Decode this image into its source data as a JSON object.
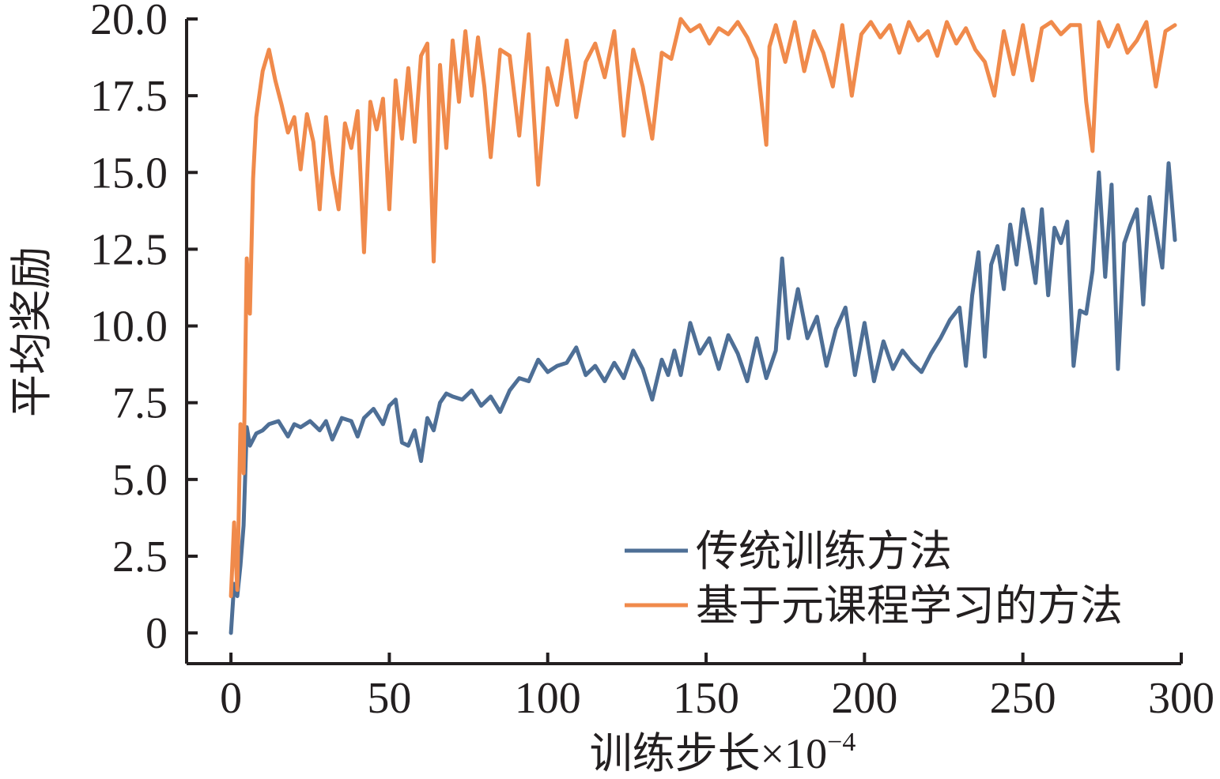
{
  "chart_data": {
    "type": "line",
    "xlabel": "训练步长×10",
    "xlabel_exp": "−4",
    "ylabel": "平均奖励",
    "xlim": [
      -14,
      300
    ],
    "ylim": [
      -1,
      20
    ],
    "xticks": [
      "0",
      "50",
      "100",
      "150",
      "200",
      "250",
      "300"
    ],
    "yticks": [
      "0",
      "2.5",
      "5.0",
      "7.5",
      "10.0",
      "12.5",
      "15.0",
      "17.5",
      "20.0"
    ],
    "legend_position": "bottom-right",
    "series": [
      {
        "name": "传统训练方法",
        "color": "#4e6f96",
        "x": [
          0,
          1,
          2,
          3,
          4,
          5,
          6,
          8,
          10,
          12,
          15,
          18,
          20,
          22,
          25,
          28,
          30,
          32,
          35,
          38,
          40,
          42,
          45,
          48,
          50,
          52,
          54,
          56,
          58,
          60,
          62,
          64,
          66,
          68,
          70,
          73,
          76,
          79,
          82,
          85,
          88,
          91,
          94,
          97,
          100,
          103,
          106,
          109,
          112,
          115,
          118,
          121,
          124,
          127,
          130,
          133,
          136,
          138,
          140,
          142,
          145,
          148,
          151,
          154,
          157,
          160,
          163,
          166,
          169,
          172,
          174,
          176,
          179,
          182,
          185,
          188,
          191,
          194,
          197,
          200,
          203,
          206,
          209,
          212,
          215,
          218,
          221,
          224,
          227,
          230,
          232,
          234,
          236,
          238,
          240,
          242,
          244,
          246,
          248,
          250,
          252,
          254,
          256,
          258,
          260,
          262,
          264,
          266,
          268,
          270,
          272,
          274,
          276,
          278,
          280,
          282,
          284,
          286,
          288,
          290,
          292,
          294,
          296,
          298
        ],
        "y": [
          0,
          1.6,
          1.2,
          2.2,
          3.5,
          6.7,
          6.1,
          6.5,
          6.6,
          6.8,
          6.9,
          6.4,
          6.8,
          6.7,
          6.9,
          6.6,
          6.9,
          6.3,
          7.0,
          6.9,
          6.4,
          7.0,
          7.3,
          6.8,
          7.4,
          7.6,
          6.2,
          6.1,
          6.6,
          5.6,
          7.0,
          6.6,
          7.5,
          7.8,
          7.7,
          7.6,
          7.9,
          7.4,
          7.7,
          7.2,
          7.9,
          8.3,
          8.2,
          8.9,
          8.5,
          8.7,
          8.8,
          9.3,
          8.4,
          8.7,
          8.2,
          8.8,
          8.3,
          9.2,
          8.6,
          7.6,
          8.9,
          8.4,
          9.2,
          8.4,
          10.1,
          9.1,
          9.6,
          8.6,
          9.7,
          9.1,
          8.2,
          9.6,
          8.3,
          9.2,
          12.2,
          9.6,
          11.2,
          9.6,
          10.3,
          8.7,
          9.9,
          10.6,
          8.4,
          10.1,
          8.2,
          9.5,
          8.6,
          9.2,
          8.8,
          8.5,
          9.1,
          9.6,
          10.2,
          10.6,
          8.7,
          11.0,
          12.4,
          9.0,
          12.0,
          12.6,
          11.2,
          13.3,
          12.0,
          13.8,
          12.7,
          11.4,
          13.8,
          11.0,
          13.2,
          12.7,
          13.4,
          8.7,
          10.5,
          10.4,
          11.8,
          15.0,
          11.6,
          14.6,
          8.6,
          12.7,
          13.3,
          13.8,
          10.7,
          14.2,
          13.1,
          11.9,
          15.3,
          12.8
        ]
      },
      {
        "name": "基于元课程学习的方法",
        "color": "#f08a4b",
        "x": [
          0,
          1,
          2,
          3,
          4,
          5,
          6,
          7,
          8,
          10,
          12,
          14,
          16,
          18,
          20,
          22,
          24,
          26,
          28,
          30,
          32,
          34,
          36,
          38,
          40,
          42,
          44,
          46,
          48,
          50,
          52,
          54,
          56,
          58,
          60,
          62,
          63,
          64,
          66,
          68,
          70,
          72,
          74,
          76,
          78,
          80,
          82,
          85,
          88,
          91,
          94,
          97,
          100,
          103,
          106,
          109,
          112,
          115,
          118,
          121,
          124,
          127,
          130,
          133,
          136,
          139,
          142,
          145,
          148,
          151,
          154,
          157,
          160,
          163,
          166,
          169,
          170,
          172,
          175,
          178,
          181,
          184,
          187,
          190,
          193,
          196,
          199,
          202,
          205,
          208,
          211,
          214,
          217,
          220,
          223,
          226,
          229,
          232,
          235,
          238,
          241,
          244,
          247,
          250,
          253,
          256,
          259,
          262,
          265,
          268,
          270,
          272,
          274,
          277,
          280,
          283,
          286,
          289,
          292,
          295,
          298
        ],
        "y": [
          1.2,
          3.6,
          1.4,
          6.8,
          5.2,
          12.2,
          10.4,
          14.8,
          16.8,
          18.3,
          19.0,
          18.0,
          17.2,
          16.3,
          16.8,
          15.1,
          16.9,
          16.0,
          13.8,
          16.8,
          15.0,
          13.8,
          16.6,
          15.8,
          17.0,
          12.4,
          17.3,
          16.4,
          17.4,
          13.8,
          18.0,
          16.1,
          18.4,
          16.0,
          18.8,
          19.2,
          15.4,
          12.1,
          18.5,
          15.8,
          19.3,
          17.3,
          19.6,
          17.5,
          19.4,
          17.8,
          15.5,
          19.0,
          18.8,
          16.2,
          19.5,
          14.6,
          18.4,
          17.2,
          19.3,
          16.8,
          18.6,
          19.2,
          18.1,
          19.6,
          16.2,
          19.0,
          17.8,
          16.1,
          18.9,
          18.7,
          20.0,
          19.6,
          19.8,
          19.2,
          19.7,
          19.5,
          19.9,
          19.4,
          18.7,
          15.9,
          19.1,
          19.8,
          18.6,
          19.9,
          18.3,
          19.6,
          18.9,
          17.8,
          19.8,
          17.5,
          19.5,
          19.9,
          19.4,
          19.8,
          18.9,
          19.9,
          19.3,
          19.6,
          18.8,
          19.9,
          19.2,
          19.7,
          19.0,
          18.6,
          17.5,
          19.6,
          18.2,
          19.8,
          18.0,
          19.7,
          19.9,
          19.5,
          19.8,
          19.8,
          17.3,
          15.7,
          19.9,
          19.1,
          19.8,
          18.9,
          19.3,
          19.9,
          17.8,
          19.6,
          19.8
        ]
      }
    ]
  }
}
